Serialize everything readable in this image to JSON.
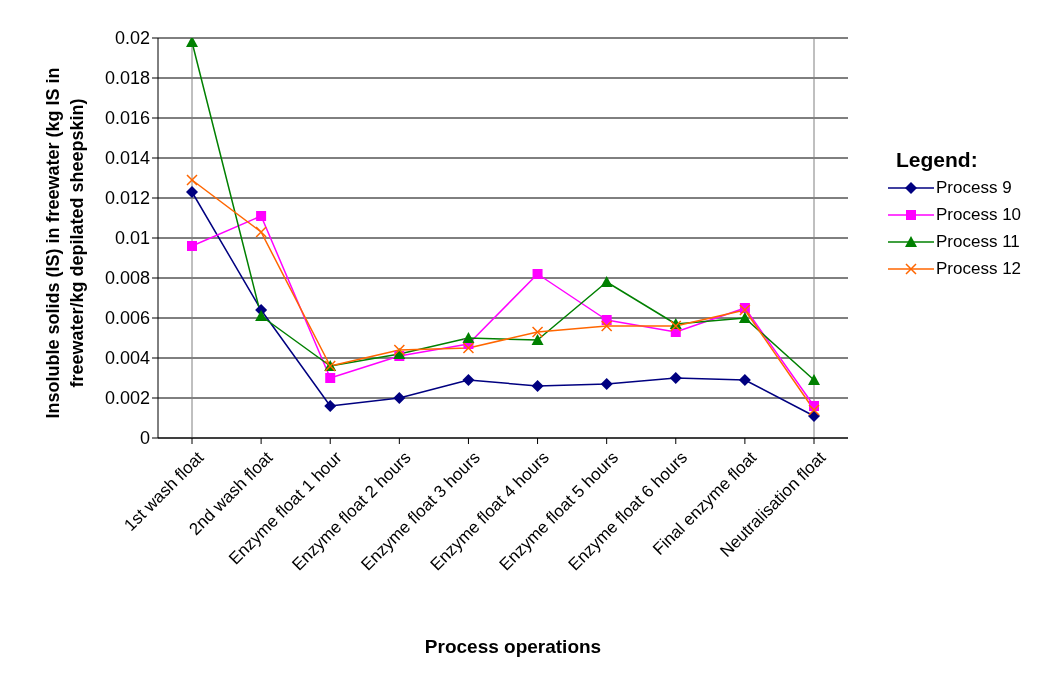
{
  "chart_data": {
    "type": "line",
    "xlabel": "Process operations",
    "ylabel": "Insoluble solids (IS) in freewater (kg IS in freewater/kg depilated sheepskin)",
    "legend_title": "Legend:",
    "legend": "right",
    "grid": "y",
    "categories": [
      "1st wash float",
      "2nd wash float",
      "Enzyme float 1 hour",
      "Enzyme float 2 hours",
      "Enzyme float 3 hours",
      "Enzyme float 4 hours",
      "Enzyme float 5 hours",
      "Enzyme float 6 hours",
      "Final enzyme float",
      "Neutralisation float"
    ],
    "ylim": [
      0,
      0.02
    ],
    "yticks": [
      0,
      0.002,
      0.004,
      0.006,
      0.008,
      0.01,
      0.012,
      0.014,
      0.016,
      0.018,
      0.02
    ],
    "series": [
      {
        "name": "Process 9",
        "color": "#000080",
        "marker": "diamond",
        "values": [
          0.0123,
          0.0064,
          0.0016,
          0.002,
          0.0029,
          0.0026,
          0.0027,
          0.003,
          0.0029,
          0.0011
        ]
      },
      {
        "name": "Process 10",
        "color": "#ff00ff",
        "marker": "square",
        "values": [
          0.0096,
          0.0111,
          0.003,
          0.0041,
          0.0047,
          0.0082,
          0.0059,
          0.0053,
          0.0065,
          0.0016
        ]
      },
      {
        "name": "Process 11",
        "color": "#008000",
        "marker": "triangle",
        "values": [
          0.0198,
          0.0061,
          0.0036,
          0.0042,
          0.005,
          0.0049,
          0.0078,
          0.0057,
          0.006,
          0.0029
        ]
      },
      {
        "name": "Process 12",
        "color": "#ff6600",
        "marker": "cross",
        "values": [
          0.0129,
          0.0103,
          0.0036,
          0.0044,
          0.0045,
          0.0053,
          0.0056,
          0.0056,
          0.0064,
          0.0014
        ]
      }
    ]
  }
}
